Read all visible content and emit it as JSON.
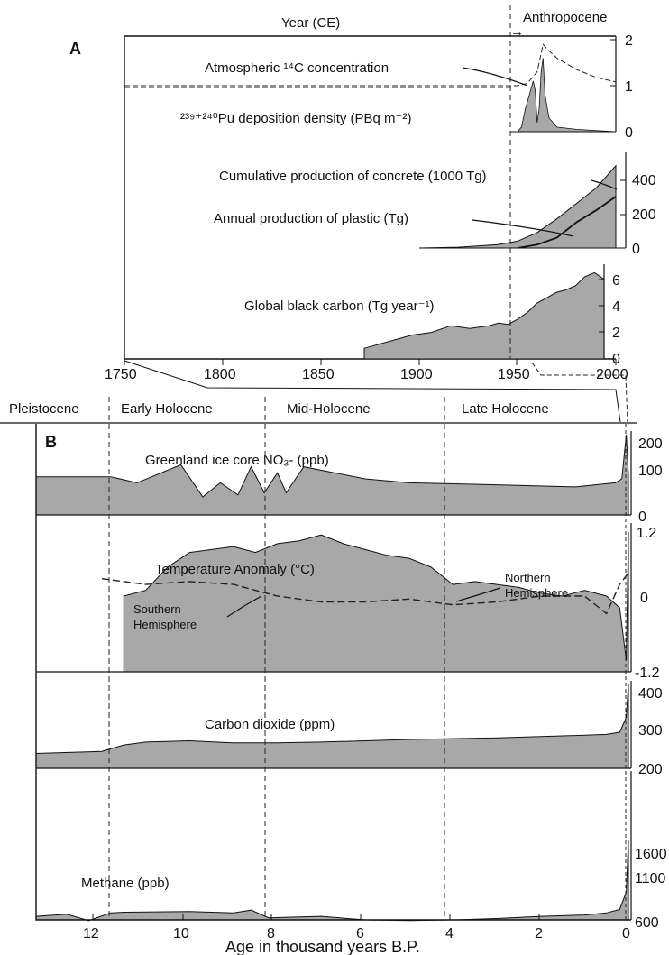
{
  "colors": {
    "fill": "#a8a8a8",
    "line": "#111111",
    "dash": "#222222",
    "frame": "#111111",
    "background": "#ffffff"
  },
  "panel_a": {
    "letter": "A",
    "top_axis_label": "Year (CE)",
    "era_label": "Anthropocene",
    "era_arrow": "→",
    "x_ticks": [
      "1750",
      "1800",
      "1850",
      "1900",
      "1950",
      "2000"
    ],
    "labels": {
      "c14": "Atmospheric ¹⁴C concentration",
      "pu": "²³⁹⁺²⁴⁰Pu deposition density (PBq m⁻²)",
      "concrete": "Cumulative production of concrete (1000 Tg)",
      "plastic": "Annual production of plastic (Tg)",
      "black_carbon": "Global black carbon (Tg year⁻¹)"
    },
    "right_ticks_1": [
      "2",
      "1",
      "0"
    ],
    "right_ticks_2": [
      "400",
      "200",
      "0"
    ],
    "right_ticks_3": [
      "6",
      "4",
      "2",
      "0"
    ]
  },
  "panel_b": {
    "letter": "B",
    "epochs": [
      "Pleistocene",
      "Early Holocene",
      "Mid-Holocene",
      "Late Holocene"
    ],
    "x_ticks": [
      "12",
      "10",
      "8",
      "6",
      "4",
      "2",
      "0"
    ],
    "x_label": "Age in thousand years B.P.",
    "labels": {
      "no3": "Greenland ice core NO₃- (ppb)",
      "temp": "Temperature Anomaly (°C)",
      "nh": [
        "Northern",
        "Hemisphere"
      ],
      "sh": [
        "Southern",
        "Hemisphere"
      ],
      "co2": "Carbon dioxide (ppm)",
      "ch4": "Methane (ppb)"
    },
    "ticks_no3": [
      "200",
      "100",
      "0"
    ],
    "ticks_temp": [
      "1.2",
      "0",
      "-1.2"
    ],
    "ticks_co2": [
      "400",
      "300",
      "200"
    ],
    "ticks_ch4": [
      "1600",
      "1100",
      "600"
    ]
  },
  "chart_data": [
    {
      "type": "area",
      "panel": "A",
      "xlabel": "Year (CE)",
      "xlim": [
        1750,
        2000
      ],
      "series": [
        {
          "name": "Atmospheric 14C concentration",
          "ylim": [
            0,
            2
          ],
          "x": [
            1750,
            1950,
            1955,
            1960,
            1963,
            1965,
            1970,
            1980,
            1990,
            2000
          ],
          "y": [
            1.0,
            1.0,
            1.05,
            1.3,
            1.9,
            1.8,
            1.6,
            1.35,
            1.18,
            1.08
          ]
        },
        {
          "name": "239+240Pu deposition density",
          "ylim": [
            0,
            2
          ],
          "x": [
            1950,
            1952,
            1954,
            1956,
            1958,
            1959,
            1960,
            1961,
            1962,
            1963,
            1964,
            1966,
            1970,
            1980,
            2000
          ],
          "y": [
            0,
            0.1,
            0.5,
            0.8,
            1.1,
            0.9,
            0.2,
            0.5,
            1.3,
            1.6,
            0.8,
            0.3,
            0.1,
            0.05,
            0
          ]
        },
        {
          "name": "Cumulative production of concrete",
          "ylim": [
            0,
            500
          ],
          "x": [
            1900,
            1920,
            1940,
            1950,
            1960,
            1970,
            1980,
            1990,
            2000
          ],
          "y": [
            0,
            5,
            20,
            40,
            90,
            170,
            260,
            350,
            480
          ]
        },
        {
          "name": "Annual production of plastic",
          "ylim": [
            0,
            500
          ],
          "x": [
            1950,
            1960,
            1970,
            1980,
            1990,
            2000
          ],
          "y": [
            0,
            20,
            60,
            150,
            220,
            300
          ]
        },
        {
          "name": "Global black carbon",
          "ylim": [
            0,
            7
          ],
          "x": [
            1875,
            1880,
            1900,
            1910,
            1920,
            1930,
            1940,
            1945,
            1950,
            1955,
            1960,
            1965,
            1970,
            1975,
            1980,
            1985,
            1990,
            1995,
            2000
          ],
          "y": [
            0.8,
            1.0,
            1.8,
            2.0,
            2.5,
            2.3,
            2.5,
            2.7,
            2.6,
            3.0,
            3.5,
            4.2,
            4.6,
            5.0,
            5.2,
            5.5,
            6.2,
            6.5,
            6.0
          ]
        }
      ]
    },
    {
      "type": "area",
      "panel": "B",
      "xlabel": "Age in thousand years B.P.",
      "xlim": [
        13.5,
        0
      ],
      "series": [
        {
          "name": "Greenland ice core NO3-",
          "ylim": [
            0,
            200
          ],
          "x": [
            13.5,
            11.8,
            11.2,
            10.2,
            9.7,
            9.3,
            8.9,
            8.6,
            8.3,
            8.0,
            7.8,
            7.4,
            6,
            5,
            3,
            1.2,
            0.3,
            0.15,
            0.05,
            0
          ],
          "y": [
            95,
            95,
            80,
            125,
            45,
            80,
            50,
            120,
            55,
            105,
            55,
            120,
            90,
            80,
            75,
            70,
            80,
            90,
            200,
            100
          ]
        },
        {
          "name": "Temperature Anomaly Northern Hemisphere",
          "ylim": [
            -1.2,
            1.2
          ],
          "x": [
            11.5,
            11,
            10.5,
            10,
            9.5,
            9,
            8.5,
            8,
            7.5,
            7,
            6.5,
            6,
            5.5,
            5,
            4.5,
            4,
            3.5,
            3,
            2.5,
            2,
            1.5,
            1,
            0.5,
            0.2,
            0.05,
            0
          ],
          "y": [
            0.1,
            0.2,
            0.6,
            0.85,
            0.9,
            0.95,
            0.85,
            1.0,
            1.05,
            1.15,
            1.0,
            0.9,
            0.8,
            0.75,
            0.6,
            0.3,
            0.35,
            0.3,
            0.25,
            0.15,
            0.1,
            0.2,
            0.1,
            -0.1,
            -1.0,
            1.2
          ]
        },
        {
          "name": "Temperature Anomaly Southern Hemisphere",
          "ylim": [
            -1.2,
            1.2
          ],
          "x": [
            12,
            11,
            10,
            9,
            8.5,
            8,
            7,
            6,
            5,
            4,
            3,
            2,
            1,
            0.5,
            0.2,
            0
          ],
          "y": [
            0.4,
            0.3,
            0.35,
            0.3,
            0.2,
            0.1,
            0.0,
            0.0,
            0.05,
            -0.05,
            0.0,
            0.1,
            0.1,
            -0.2,
            0.3,
            0.5
          ]
        },
        {
          "name": "Carbon dioxide",
          "ylim": [
            200,
            400
          ],
          "x": [
            13.5,
            12,
            11.5,
            11,
            10,
            9,
            8,
            7,
            6,
            5,
            4,
            3,
            2,
            1,
            0.5,
            0.2,
            0.05,
            0
          ],
          "y": [
            235,
            240,
            255,
            262,
            265,
            260,
            260,
            262,
            265,
            268,
            270,
            272,
            275,
            278,
            280,
            285,
            320,
            400
          ]
        },
        {
          "name": "Methane",
          "ylim": [
            600,
            1700
          ],
          "x": [
            13.5,
            12.8,
            12.3,
            11.8,
            11.5,
            10,
            9,
            8.6,
            8.2,
            7,
            6,
            5,
            4,
            3,
            2,
            1,
            0.5,
            0.2,
            0.05,
            0
          ],
          "y": [
            650,
            680,
            590,
            700,
            710,
            720,
            700,
            740,
            630,
            650,
            600,
            590,
            600,
            620,
            650,
            670,
            700,
            750,
            1000,
            1750
          ]
        }
      ]
    }
  ]
}
